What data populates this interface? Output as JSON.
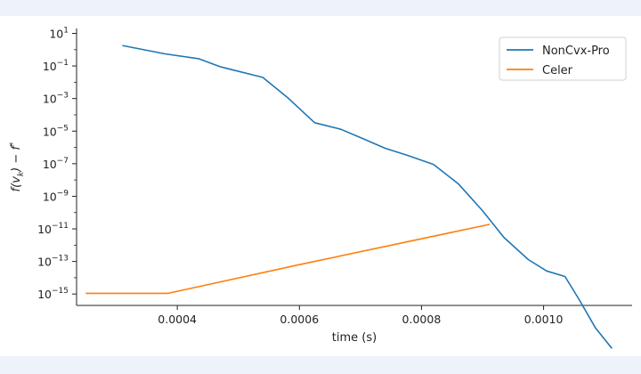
{
  "chart_data": {
    "type": "line",
    "xlabel": "time (s)",
    "ylabel": "f(v_k) − f*",
    "yscale": "log",
    "xlim": [
      0.000235,
      0.001145
    ],
    "ylim_exp": [
      -15.7,
      1.3
    ],
    "x_ticks": [
      {
        "value": 0.0004,
        "label": "0.0004"
      },
      {
        "value": 0.0006,
        "label": "0.0006"
      },
      {
        "value": 0.0008,
        "label": "0.0008"
      },
      {
        "value": 0.001,
        "label": "0.0010"
      }
    ],
    "y_ticks": [
      {
        "exp": 1,
        "base": "10",
        "sup": "1"
      },
      {
        "exp": -1,
        "base": "10",
        "sup": "−1"
      },
      {
        "exp": -3,
        "base": "10",
        "sup": "−3"
      },
      {
        "exp": -5,
        "base": "10",
        "sup": "−5"
      },
      {
        "exp": -7,
        "base": "10",
        "sup": "−7"
      },
      {
        "exp": -9,
        "base": "10",
        "sup": "−9"
      },
      {
        "exp": -11,
        "base": "10",
        "sup": "−11"
      },
      {
        "exp": -13,
        "base": "10",
        "sup": "−13"
      },
      {
        "exp": -15,
        "base": "10",
        "sup": "−15"
      }
    ],
    "legend_position": "top-right",
    "grid": false,
    "series": [
      {
        "name": "NonCvx-Pro",
        "color": "#1f77b4",
        "points": [
          [
            0.00031,
            1.8
          ],
          [
            0.00038,
            0.55
          ],
          [
            0.000435,
            0.28
          ],
          [
            0.00047,
            0.09
          ],
          [
            0.00054,
            0.02
          ],
          [
            0.00058,
            0.0012
          ],
          [
            0.000625,
            3.3e-05
          ],
          [
            0.000668,
            1.3e-05
          ],
          [
            0.0007,
            4e-06
          ],
          [
            0.00074,
            9e-07
          ],
          [
            0.00078,
            3e-07
          ],
          [
            0.00082,
            8.9e-08
          ],
          [
            0.00086,
            6e-09
          ],
          [
            0.0009,
            1.3e-10
          ],
          [
            0.000935,
            3e-12
          ],
          [
            0.000975,
            1.3e-13
          ],
          [
            0.001005,
            2.6e-14
          ],
          [
            0.001035,
            1.2e-14
          ],
          [
            0.001058,
            4.8e-16
          ],
          [
            0.001085,
            8.3e-18
          ],
          [
            0.001112,
            4.5e-19
          ]
        ]
      },
      {
        "name": "Celer",
        "color": "#ff7f0e",
        "points": [
          [
            0.00025,
            1.1e-15
          ],
          [
            0.000385,
            1.1e-15
          ],
          [
            0.0006,
            6.4e-14
          ],
          [
            0.000912,
            1.9e-11
          ]
        ]
      }
    ]
  }
}
